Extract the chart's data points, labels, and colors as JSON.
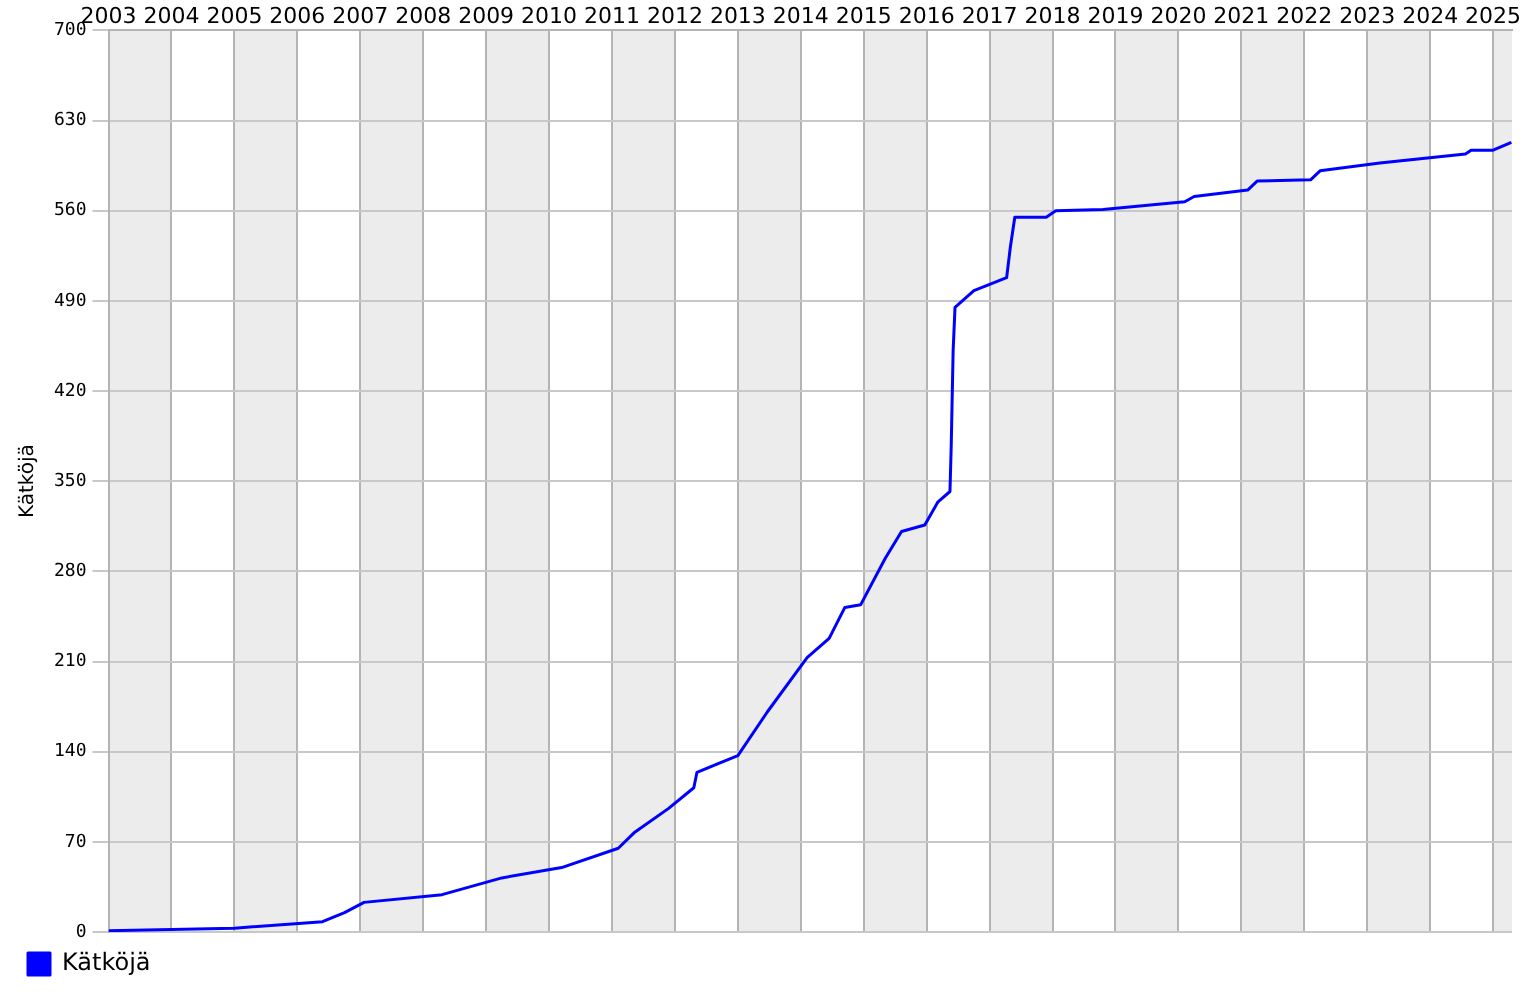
{
  "chart_data": {
    "type": "line",
    "ylabel": "Kätköjä",
    "legend": "bottom left",
    "grid": true,
    "marker": "none",
    "line_style": "solid",
    "xlim": [
      2003,
      2025.3
    ],
    "xticks": [
      {
        "value": 2003,
        "label": "2003"
      },
      {
        "value": 2004,
        "label": "2004"
      },
      {
        "value": 2005,
        "label": "2005"
      },
      {
        "value": 2006,
        "label": "2006"
      },
      {
        "value": 2007,
        "label": "2007"
      },
      {
        "value": 2008,
        "label": "2008"
      },
      {
        "value": 2009,
        "label": "2009"
      },
      {
        "value": 2010,
        "label": "2010"
      },
      {
        "value": 2011,
        "label": "2011"
      },
      {
        "value": 2012,
        "label": "2012"
      },
      {
        "value": 2013,
        "label": "2013"
      },
      {
        "value": 2014,
        "label": "2014"
      },
      {
        "value": 2015,
        "label": "2015"
      },
      {
        "value": 2016,
        "label": "2016"
      },
      {
        "value": 2017,
        "label": "2017"
      },
      {
        "value": 2018,
        "label": "2018"
      },
      {
        "value": 2019,
        "label": "2019"
      },
      {
        "value": 2020,
        "label": "2020"
      },
      {
        "value": 2021,
        "label": "2021"
      },
      {
        "value": 2022,
        "label": "2022"
      },
      {
        "value": 2023,
        "label": "2023"
      },
      {
        "value": 2024,
        "label": "2024"
      },
      {
        "value": 2025,
        "label": "2025"
      }
    ],
    "ylim": [
      0,
      700
    ],
    "yticks": [
      0,
      70,
      140,
      210,
      280,
      350,
      420,
      490,
      560,
      630,
      700
    ],
    "x": [
      2003,
      2005,
      2006.4,
      2006.75,
      2007.06,
      2008.3,
      2009.25,
      2010.2,
      2011.1,
      2011.35,
      2011.9,
      2012.3,
      2012.35,
      2013,
      2013.47,
      2014.1,
      2014.45,
      2014.7,
      2014.95,
      2015.34,
      2015.6,
      2015.97,
      2016.18,
      2016.37,
      2016.39,
      2016.42,
      2016.45,
      2016.75,
      2017.27,
      2017.33,
      2017.4,
      2017.9,
      2018.05,
      2018.8,
      2020.1,
      2020.25,
      2021.1,
      2021.25,
      2022.1,
      2022.25,
      2023.2,
      2024.56,
      2024.65,
      2025,
      2025.29
    ],
    "series": [
      {
        "name": "Kätköjä",
        "color": "#0000ff",
        "values": [
          1,
          3,
          8,
          15,
          23,
          29,
          42,
          50,
          65,
          77,
          96,
          112,
          124,
          137,
          171,
          213,
          228,
          252,
          254,
          290,
          311,
          316,
          334,
          342,
          378,
          451,
          485,
          498,
          508,
          532,
          555,
          555,
          560,
          561,
          567,
          571,
          576,
          583,
          584,
          591,
          597,
          604,
          607,
          607,
          613
        ]
      }
    ]
  }
}
